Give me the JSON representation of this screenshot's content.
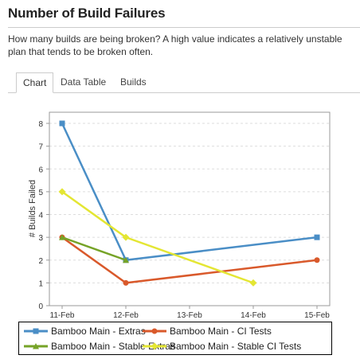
{
  "page": {
    "title": "Number of Build Failures",
    "description": "How many builds are being broken? A high value indicates a relatively unstable plan that tends to be broken often."
  },
  "tabs": [
    {
      "label": "Chart",
      "active": true
    },
    {
      "label": "Data Table",
      "active": false
    },
    {
      "label": "Builds",
      "active": false
    }
  ],
  "chart_data": {
    "type": "line",
    "title": "",
    "xlabel": "",
    "ylabel": "# Builds Failed",
    "x": [
      "11-Feb",
      "12-Feb",
      "13-Feb",
      "14-Feb",
      "15-Feb"
    ],
    "ylim": [
      0,
      8
    ],
    "yticks": [
      0,
      1,
      2,
      3,
      4,
      5,
      6,
      7,
      8
    ],
    "grid": true,
    "legend_position": "bottom",
    "series": [
      {
        "name": "Bamboo Main - Extras",
        "color": "#4a8ec6",
        "marker": "square",
        "points": [
          {
            "x": "11-Feb",
            "y": 8
          },
          {
            "x": "12-Feb",
            "y": 2
          },
          {
            "x": "15-Feb",
            "y": 3
          }
        ]
      },
      {
        "name": "Bamboo Main - CI Tests",
        "color": "#d9592b",
        "marker": "circle",
        "points": [
          {
            "x": "11-Feb",
            "y": 3
          },
          {
            "x": "12-Feb",
            "y": 1
          },
          {
            "x": "15-Feb",
            "y": 2
          }
        ]
      },
      {
        "name": "Bamboo Main - Stable Extras",
        "color": "#76a327",
        "marker": "triangle",
        "points": [
          {
            "x": "11-Feb",
            "y": 3
          },
          {
            "x": "12-Feb",
            "y": 2
          }
        ]
      },
      {
        "name": "Bamboo Main - Stable CI Tests",
        "color": "#e4e633",
        "marker": "diamond",
        "points": [
          {
            "x": "11-Feb",
            "y": 5
          },
          {
            "x": "12-Feb",
            "y": 3
          },
          {
            "x": "14-Feb",
            "y": 1
          }
        ]
      }
    ]
  }
}
